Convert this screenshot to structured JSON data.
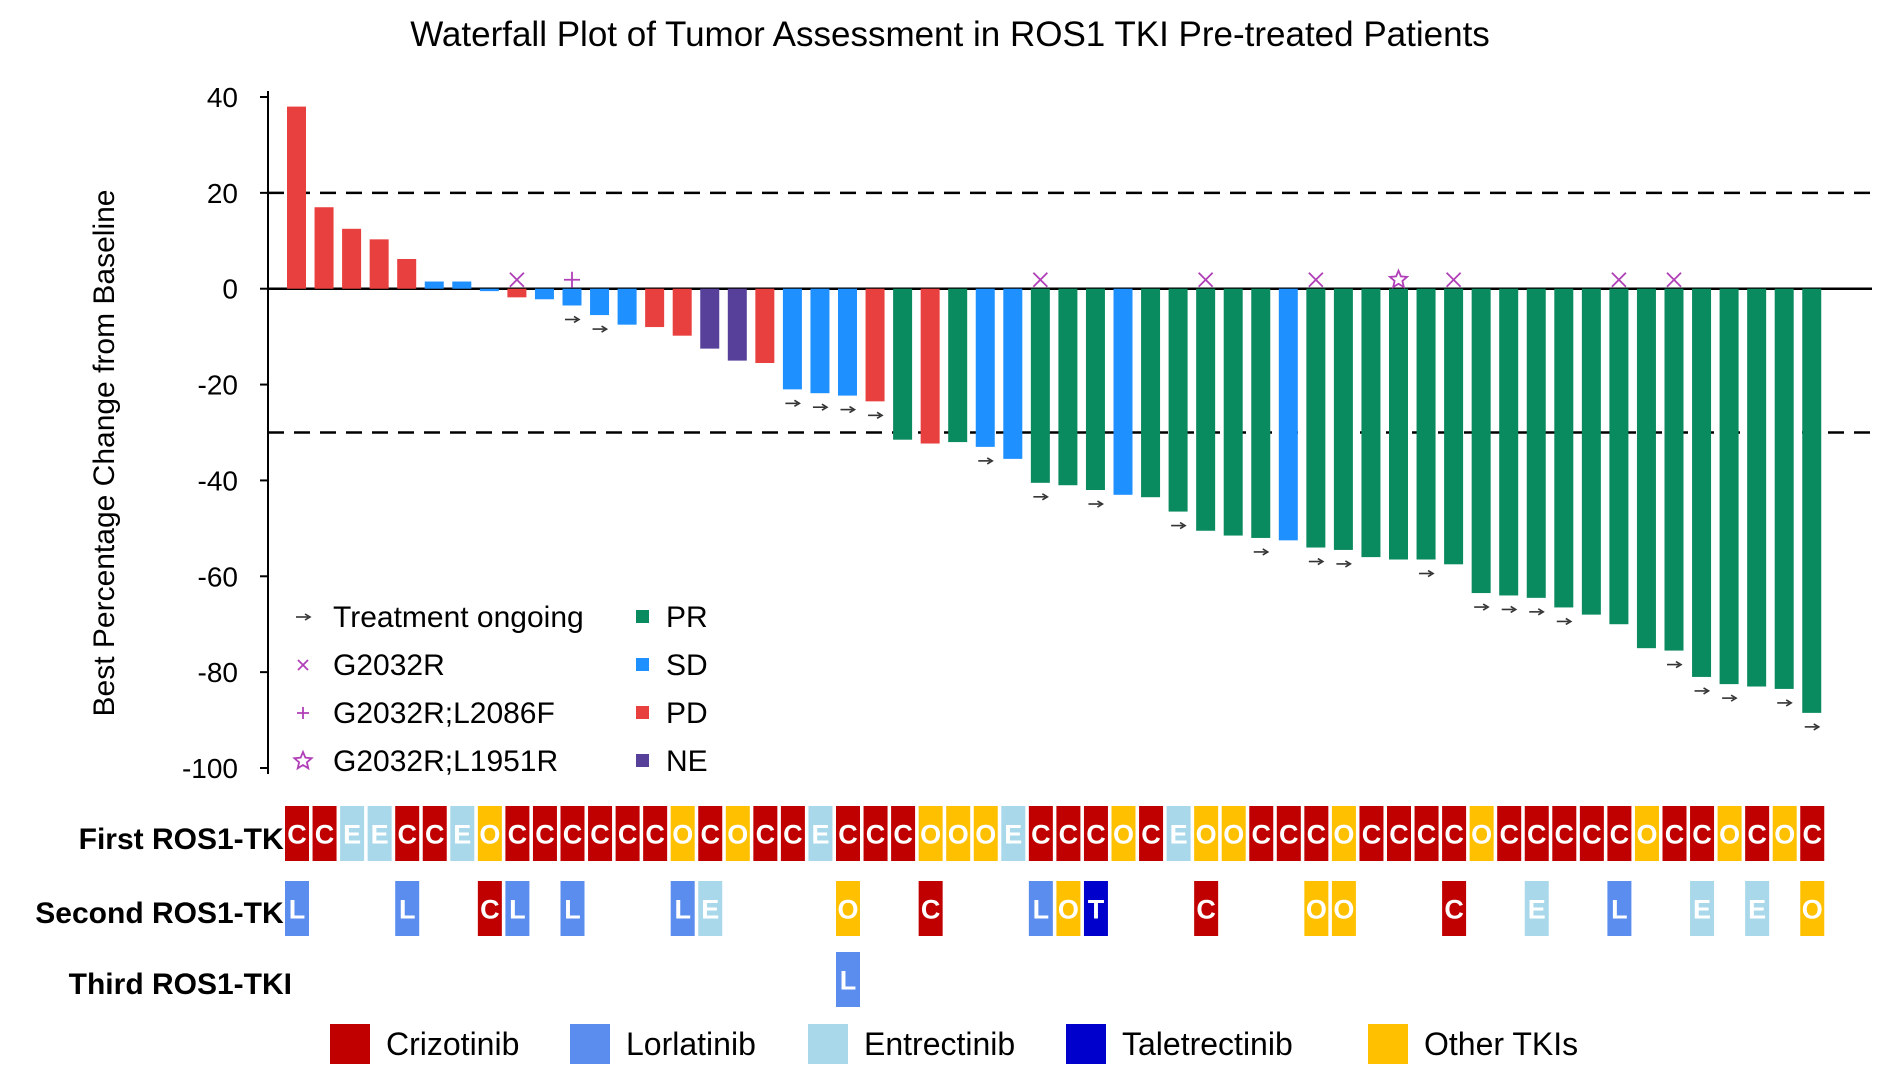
{
  "chart_data": {
    "type": "bar",
    "title": "Waterfall Plot of Tumor Assessment in ROS1 TKI Pre-treated Patients",
    "ylabel": "Best Percentage Change from Baseline",
    "xlabel": "",
    "ylim": [
      -100,
      40
    ],
    "yticks": [
      40,
      20,
      0,
      -20,
      -40,
      -60,
      -80,
      -100
    ],
    "reference_lines": [
      20,
      -30
    ],
    "response_colors": {
      "PR": "#0a8a5f",
      "SD": "#1e90ff",
      "PD": "#e8403f",
      "NE": "#57409a"
    },
    "tki_colors": {
      "C": "#c00000",
      "L": "#5b8def",
      "E": "#a8d8ea",
      "T": "#0000cc",
      "O": "#ffc000"
    },
    "legend_response": [
      {
        "key": "PR",
        "label": "PR"
      },
      {
        "key": "SD",
        "label": "SD"
      },
      {
        "key": "PD",
        "label": "PD"
      },
      {
        "key": "NE",
        "label": "NE"
      }
    ],
    "legend_symbols": [
      {
        "symbol": "arrow",
        "label": "Treatment ongoing"
      },
      {
        "symbol": "x",
        "label": "G2032R"
      },
      {
        "symbol": "plus",
        "label": "G2032R;L2086F"
      },
      {
        "symbol": "star",
        "label": "G2032R;L1951R"
      }
    ],
    "tki_rows": [
      "First ROS1-TKI",
      "Second ROS1-TKI",
      "Third ROS1-TKI"
    ],
    "legend_tki": [
      {
        "key": "C",
        "label": "Crizotinib"
      },
      {
        "key": "L",
        "label": "Lorlatinib"
      },
      {
        "key": "E",
        "label": "Entrectinib"
      },
      {
        "key": "T",
        "label": "Taletrectinib"
      },
      {
        "key": "O",
        "label": "Other TKIs"
      }
    ],
    "patients": [
      {
        "value": 38,
        "response": "PD",
        "ongoing": false,
        "mutation": "",
        "first": "C",
        "second": "L",
        "third": ""
      },
      {
        "value": 17,
        "response": "PD",
        "ongoing": false,
        "mutation": "",
        "first": "C",
        "second": "",
        "third": ""
      },
      {
        "value": 12.5,
        "response": "PD",
        "ongoing": false,
        "mutation": "",
        "first": "E",
        "second": "",
        "third": ""
      },
      {
        "value": 10.3,
        "response": "PD",
        "ongoing": false,
        "mutation": "",
        "first": "E",
        "second": "",
        "third": ""
      },
      {
        "value": 6.2,
        "response": "PD",
        "ongoing": false,
        "mutation": "",
        "first": "C",
        "second": "L",
        "third": ""
      },
      {
        "value": 1.5,
        "response": "SD",
        "ongoing": false,
        "mutation": "",
        "first": "C",
        "second": "",
        "third": ""
      },
      {
        "value": 1.5,
        "response": "SD",
        "ongoing": false,
        "mutation": "",
        "first": "E",
        "second": "",
        "third": ""
      },
      {
        "value": -0.5,
        "response": "SD",
        "ongoing": false,
        "mutation": "",
        "first": "O",
        "second": "C",
        "third": ""
      },
      {
        "value": -1.8,
        "response": "PD",
        "ongoing": false,
        "mutation": "G2032R",
        "first": "C",
        "second": "L",
        "third": ""
      },
      {
        "value": -2.2,
        "response": "SD",
        "ongoing": false,
        "mutation": "",
        "first": "C",
        "second": "",
        "third": ""
      },
      {
        "value": -3.5,
        "response": "SD",
        "ongoing": true,
        "mutation": "G2032R;L2086F",
        "first": "C",
        "second": "L",
        "third": ""
      },
      {
        "value": -5.5,
        "response": "SD",
        "ongoing": true,
        "mutation": "",
        "first": "C",
        "second": "",
        "third": ""
      },
      {
        "value": -7.5,
        "response": "SD",
        "ongoing": false,
        "mutation": "",
        "first": "C",
        "second": "",
        "third": ""
      },
      {
        "value": -8,
        "response": "PD",
        "ongoing": false,
        "mutation": "",
        "first": "C",
        "second": "",
        "third": ""
      },
      {
        "value": -9.8,
        "response": "PD",
        "ongoing": false,
        "mutation": "",
        "first": "O",
        "second": "L",
        "third": ""
      },
      {
        "value": -12.5,
        "response": "NE",
        "ongoing": false,
        "mutation": "",
        "first": "C",
        "second": "E",
        "third": ""
      },
      {
        "value": -15,
        "response": "NE",
        "ongoing": false,
        "mutation": "",
        "first": "O",
        "second": "",
        "third": ""
      },
      {
        "value": -15.5,
        "response": "PD",
        "ongoing": false,
        "mutation": "",
        "first": "C",
        "second": "",
        "third": ""
      },
      {
        "value": -21,
        "response": "SD",
        "ongoing": true,
        "mutation": "",
        "first": "C",
        "second": "",
        "third": ""
      },
      {
        "value": -21.8,
        "response": "SD",
        "ongoing": true,
        "mutation": "",
        "first": "E",
        "second": "",
        "third": ""
      },
      {
        "value": -22.3,
        "response": "SD",
        "ongoing": true,
        "mutation": "",
        "first": "C",
        "second": "O",
        "third": "L"
      },
      {
        "value": -23.5,
        "response": "PD",
        "ongoing": true,
        "mutation": "",
        "first": "C",
        "second": "",
        "third": ""
      },
      {
        "value": -31.5,
        "response": "PR",
        "ongoing": false,
        "mutation": "",
        "first": "C",
        "second": "",
        "third": ""
      },
      {
        "value": -32.3,
        "response": "PD",
        "ongoing": false,
        "mutation": "",
        "first": "O",
        "second": "C",
        "third": ""
      },
      {
        "value": -32,
        "response": "PR",
        "ongoing": false,
        "mutation": "",
        "first": "O",
        "second": "",
        "third": ""
      },
      {
        "value": -33,
        "response": "SD",
        "ongoing": true,
        "mutation": "",
        "first": "O",
        "second": "",
        "third": ""
      },
      {
        "value": -35.5,
        "response": "SD",
        "ongoing": false,
        "mutation": "",
        "first": "E",
        "second": "",
        "third": ""
      },
      {
        "value": -40.5,
        "response": "PR",
        "ongoing": true,
        "mutation": "G2032R",
        "first": "C",
        "second": "L",
        "third": ""
      },
      {
        "value": -41,
        "response": "PR",
        "ongoing": false,
        "mutation": "",
        "first": "C",
        "second": "O",
        "third": ""
      },
      {
        "value": -42,
        "response": "PR",
        "ongoing": true,
        "mutation": "",
        "first": "C",
        "second": "T",
        "third": ""
      },
      {
        "value": -43,
        "response": "SD",
        "ongoing": false,
        "mutation": "",
        "first": "O",
        "second": "",
        "third": ""
      },
      {
        "value": -43.5,
        "response": "PR",
        "ongoing": false,
        "mutation": "",
        "first": "C",
        "second": "",
        "third": ""
      },
      {
        "value": -46.5,
        "response": "PR",
        "ongoing": true,
        "mutation": "",
        "first": "E",
        "second": "",
        "third": ""
      },
      {
        "value": -50.5,
        "response": "PR",
        "ongoing": false,
        "mutation": "G2032R",
        "first": "O",
        "second": "C",
        "third": ""
      },
      {
        "value": -51.5,
        "response": "PR",
        "ongoing": false,
        "mutation": "",
        "first": "O",
        "second": "",
        "third": ""
      },
      {
        "value": -52,
        "response": "PR",
        "ongoing": true,
        "mutation": "",
        "first": "C",
        "second": "",
        "third": ""
      },
      {
        "value": -52.5,
        "response": "SD",
        "ongoing": false,
        "mutation": "",
        "first": "C",
        "second": "",
        "third": ""
      },
      {
        "value": -54,
        "response": "PR",
        "ongoing": true,
        "mutation": "G2032R",
        "first": "C",
        "second": "O",
        "third": ""
      },
      {
        "value": -54.5,
        "response": "PR",
        "ongoing": true,
        "mutation": "",
        "first": "O",
        "second": "O",
        "third": ""
      },
      {
        "value": -56,
        "response": "PR",
        "ongoing": false,
        "mutation": "",
        "first": "C",
        "second": "",
        "third": ""
      },
      {
        "value": -56.5,
        "response": "PR",
        "ongoing": false,
        "mutation": "G2032R;L1951R",
        "first": "C",
        "second": "",
        "third": ""
      },
      {
        "value": -56.5,
        "response": "PR",
        "ongoing": true,
        "mutation": "",
        "first": "C",
        "second": "",
        "third": ""
      },
      {
        "value": -57.5,
        "response": "PR",
        "ongoing": false,
        "mutation": "G2032R",
        "first": "C",
        "second": "C",
        "third": ""
      },
      {
        "value": -63.5,
        "response": "PR",
        "ongoing": true,
        "mutation": "",
        "first": "O",
        "second": "",
        "third": ""
      },
      {
        "value": -64,
        "response": "PR",
        "ongoing": true,
        "mutation": "",
        "first": "C",
        "second": "",
        "third": ""
      },
      {
        "value": -64.5,
        "response": "PR",
        "ongoing": true,
        "mutation": "",
        "first": "C",
        "second": "E",
        "third": ""
      },
      {
        "value": -66.5,
        "response": "PR",
        "ongoing": true,
        "mutation": "",
        "first": "C",
        "second": "",
        "third": ""
      },
      {
        "value": -68,
        "response": "PR",
        "ongoing": false,
        "mutation": "",
        "first": "C",
        "second": "",
        "third": ""
      },
      {
        "value": -70,
        "response": "PR",
        "ongoing": false,
        "mutation": "G2032R",
        "first": "C",
        "second": "L",
        "third": ""
      },
      {
        "value": -75,
        "response": "PR",
        "ongoing": false,
        "mutation": "",
        "first": "O",
        "second": "",
        "third": ""
      },
      {
        "value": -75.5,
        "response": "PR",
        "ongoing": true,
        "mutation": "G2032R",
        "first": "C",
        "second": "",
        "third": ""
      },
      {
        "value": -81,
        "response": "PR",
        "ongoing": true,
        "mutation": "",
        "first": "C",
        "second": "E",
        "third": ""
      },
      {
        "value": -82.5,
        "response": "PR",
        "ongoing": true,
        "mutation": "",
        "first": "O",
        "second": "",
        "third": ""
      },
      {
        "value": -83,
        "response": "PR",
        "ongoing": false,
        "mutation": "",
        "first": "C",
        "second": "E",
        "third": ""
      },
      {
        "value": -83.5,
        "response": "PR",
        "ongoing": true,
        "mutation": "",
        "first": "O",
        "second": "",
        "third": ""
      },
      {
        "value": -88.5,
        "response": "PR",
        "ongoing": true,
        "mutation": "",
        "first": "C",
        "second": "O",
        "third": ""
      }
    ]
  }
}
